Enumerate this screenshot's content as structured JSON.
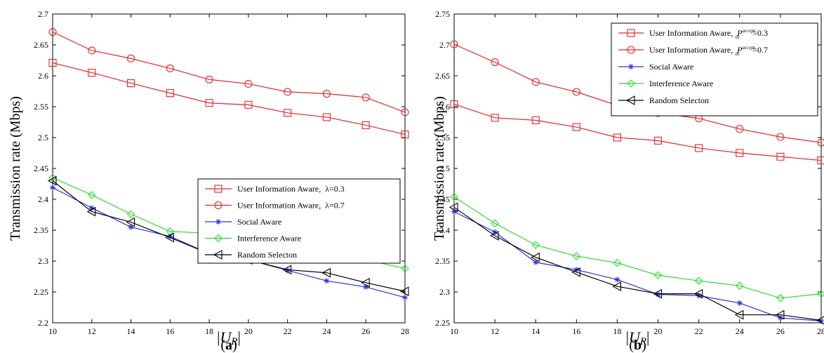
{
  "chart_data": [
    {
      "type": "line",
      "ylabel": "Transmission rate (Mbps)",
      "xlabel_main": "U",
      "xlabel_sub": "R",
      "panel_label": "(a)",
      "xlim": [
        10,
        28
      ],
      "ylim": [
        2.2,
        2.7
      ],
      "x": [
        10,
        12,
        14,
        16,
        18,
        20,
        22,
        24,
        26,
        28
      ],
      "xticks": [
        "10",
        "12",
        "14",
        "16",
        "18",
        "20",
        "22",
        "24",
        "26",
        "28"
      ],
      "yticks": [
        "2.2",
        "2.25",
        "2.3",
        "2.35",
        "2.4",
        "2.45",
        "2.5",
        "2.55",
        "2.6",
        "2.65",
        "2.7"
      ],
      "legend_position": "center-right",
      "series": [
        {
          "name": "User Information Aware, λ=0.3",
          "label_main": "User Information Aware,",
          "label_param": "λ",
          "label_value": "=0.3",
          "color": "#e8262a",
          "marker": "square",
          "values": [
            2.621,
            2.605,
            2.588,
            2.572,
            2.556,
            2.553,
            2.54,
            2.533,
            2.52,
            2.505
          ]
        },
        {
          "name": "User Information Aware, λ=0.7",
          "label_main": "User Information Aware,",
          "label_param": "λ",
          "label_value": "=0.7",
          "color": "#e8262a",
          "marker": "circle",
          "values": [
            2.671,
            2.641,
            2.628,
            2.612,
            2.594,
            2.587,
            2.574,
            2.571,
            2.565,
            2.541
          ]
        },
        {
          "name": "Social Aware",
          "label_main": "Social Aware",
          "label_param": "",
          "label_value": "",
          "color": "#2b32e0",
          "marker": "star",
          "values": [
            2.419,
            2.386,
            2.355,
            2.34,
            2.312,
            2.302,
            2.285,
            2.268,
            2.258,
            2.241
          ]
        },
        {
          "name": "Interference Aware",
          "label_main": "Interference Aware",
          "label_param": "",
          "label_value": "",
          "color": "#2ddc2d",
          "marker": "diamond",
          "values": [
            2.435,
            2.407,
            2.376,
            2.348,
            2.345,
            2.339,
            2.319,
            2.304,
            2.302,
            2.288
          ]
        },
        {
          "name": "Random Selecton",
          "label_main": "Random Selecton",
          "label_param": "",
          "label_value": "",
          "color": "#000000",
          "marker": "triangle-left",
          "values": [
            2.43,
            2.38,
            2.363,
            2.338,
            2.312,
            2.302,
            2.286,
            2.281,
            2.265,
            2.251
          ]
        }
      ]
    },
    {
      "type": "line",
      "ylabel": "Transmission rate (Mbps)",
      "xlabel_main": "U",
      "xlabel_sub": "R",
      "panel_label": "(b)",
      "xlim": [
        10,
        28
      ],
      "ylim": [
        2.25,
        2.75
      ],
      "x": [
        10,
        12,
        14,
        16,
        18,
        20,
        22,
        24,
        26,
        28
      ],
      "xticks": [
        "10",
        "12",
        "14",
        "16",
        "18",
        "20",
        "22",
        "24",
        "26",
        "28"
      ],
      "yticks": [
        "2.25",
        "2.3",
        "2.35",
        "2.4",
        "2.45",
        "2.5",
        "2.55",
        "2.6",
        "2.65",
        "2.7",
        "2.75"
      ],
      "legend_position": "top-right",
      "series": [
        {
          "name": "User Information Aware, P_th^accept=0.3",
          "label_main": "User Information Aware,",
          "label_param": "P",
          "label_sup": "accept",
          "label_sub": "th",
          "label_value": "=0.3",
          "color": "#e8262a",
          "marker": "square",
          "values": [
            2.604,
            2.582,
            2.578,
            2.567,
            2.55,
            2.545,
            2.533,
            2.525,
            2.519,
            2.513
          ]
        },
        {
          "name": "User Information Aware, P_th^accept=0.7",
          "label_main": "User Information Aware,",
          "label_param": "P",
          "label_sup": "accept",
          "label_sub": "th",
          "label_value": "=0.7",
          "color": "#e8262a",
          "marker": "circle",
          "values": [
            2.701,
            2.672,
            2.64,
            2.624,
            2.602,
            2.59,
            2.581,
            2.564,
            2.551,
            2.542
          ]
        },
        {
          "name": "Social Aware",
          "label_main": "Social Aware",
          "label_param": "",
          "label_value": "",
          "color": "#2b32e0",
          "marker": "star",
          "values": [
            2.43,
            2.397,
            2.348,
            2.336,
            2.32,
            2.296,
            2.294,
            2.282,
            2.258,
            2.253
          ]
        },
        {
          "name": "Interference Aware",
          "label_main": "Interference Aware",
          "label_param": "",
          "label_value": "",
          "color": "#2ddc2d",
          "marker": "diamond",
          "values": [
            2.454,
            2.411,
            2.376,
            2.358,
            2.347,
            2.327,
            2.318,
            2.31,
            2.29,
            2.297
          ]
        },
        {
          "name": "Random Selecton",
          "label_main": "Random Selecton",
          "label_param": "",
          "label_value": "",
          "color": "#000000",
          "marker": "triangle-left",
          "values": [
            2.437,
            2.391,
            2.356,
            2.332,
            2.309,
            2.297,
            2.297,
            2.263,
            2.263,
            2.254
          ]
        }
      ]
    }
  ]
}
